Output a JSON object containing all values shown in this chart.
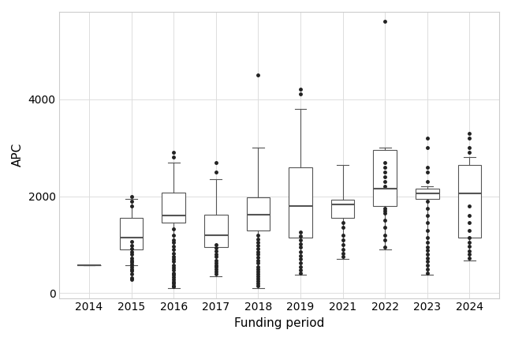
{
  "title": "",
  "xlabel": "Funding period",
  "ylabel": "APC",
  "years": [
    "2014",
    "2015",
    "2016",
    "2017",
    "2018",
    "2019",
    "2021",
    "2022",
    "2023",
    "2024"
  ],
  "ylim": [
    -100,
    5800
  ],
  "yticks": [
    0,
    2000,
    4000
  ],
  "box_stats": {
    "2014": {
      "q1": 572,
      "median": 572,
      "q3": 572,
      "whislo": 572,
      "whishi": 572,
      "fliers": []
    },
    "2015": {
      "q1": 900,
      "median": 1150,
      "q3": 1550,
      "whislo": 580,
      "whishi": 1950,
      "fliers": [
        280,
        320,
        400,
        460,
        500,
        540,
        600,
        640,
        680,
        720,
        800,
        850,
        920,
        990,
        1060,
        1800,
        1900,
        2000
      ]
    },
    "2016": {
      "q1": 1450,
      "median": 1600,
      "q3": 2080,
      "whislo": 100,
      "whishi": 2700,
      "fliers": [
        130,
        160,
        200,
        240,
        290,
        340,
        380,
        420,
        480,
        530,
        580,
        650,
        700,
        760,
        820,
        900,
        960,
        1050,
        1100,
        1200,
        1320,
        2800,
        2900
      ]
    },
    "2017": {
      "q1": 950,
      "median": 1200,
      "q3": 1620,
      "whislo": 350,
      "whishi": 2350,
      "fliers": [
        390,
        440,
        490,
        540,
        580,
        630,
        680,
        750,
        810,
        870,
        930,
        1000,
        2500,
        2700
      ]
    },
    "2018": {
      "q1": 1300,
      "median": 1620,
      "q3": 1980,
      "whislo": 110,
      "whishi": 3000,
      "fliers": [
        150,
        200,
        250,
        300,
        350,
        400,
        450,
        500,
        550,
        620,
        680,
        740,
        800,
        860,
        920,
        980,
        1050,
        1120,
        1200,
        4500
      ]
    },
    "2019": {
      "q1": 1150,
      "median": 1800,
      "q3": 2600,
      "whislo": 380,
      "whishi": 3800,
      "fliers": [
        420,
        480,
        550,
        620,
        700,
        780,
        860,
        950,
        1020,
        1100,
        1180,
        1260,
        4100,
        4200
      ]
    },
    "2021": {
      "q1": 1550,
      "median": 1830,
      "q3": 1930,
      "whislo": 700,
      "whishi": 2650,
      "fliers": [
        750,
        820,
        900,
        1000,
        1100,
        1200,
        1350,
        1450
      ]
    },
    "2022": {
      "q1": 1800,
      "median": 2150,
      "q3": 2950,
      "whislo": 900,
      "whishi": 3000,
      "fliers": [
        950,
        1100,
        1200,
        1350,
        1500,
        1650,
        1700,
        1750,
        2200,
        2300,
        2400,
        2500,
        2600,
        2700,
        5600
      ]
    },
    "2023": {
      "q1": 1950,
      "median": 2050,
      "q3": 2150,
      "whislo": 380,
      "whishi": 2200,
      "fliers": [
        420,
        500,
        580,
        650,
        720,
        800,
        880,
        950,
        1050,
        1150,
        1300,
        1450,
        1600,
        1750,
        1900,
        2300,
        2500,
        2600,
        3000,
        3200
      ]
    },
    "2024": {
      "q1": 1150,
      "median": 2050,
      "q3": 2650,
      "whislo": 680,
      "whishi": 2800,
      "fliers": [
        720,
        800,
        870,
        960,
        1050,
        1150,
        1300,
        1450,
        1600,
        1800,
        2900,
        3000,
        3200,
        3300
      ]
    }
  },
  "box_color": "#ffffff",
  "median_color": "#555555",
  "whisker_color": "#555555",
  "box_edge_color": "#555555",
  "flier_color": "#222222",
  "flier_size": 2.5,
  "box_width": 0.55,
  "background_color": "#ffffff",
  "grid_color": "#dddddd"
}
